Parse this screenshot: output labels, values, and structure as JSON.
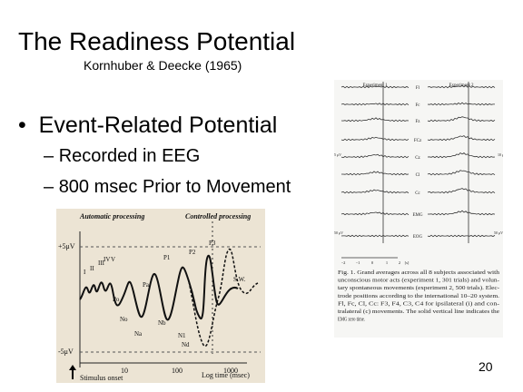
{
  "slide": {
    "title": "The Readiness Potential",
    "subtitle": "Kornhuber & Deecke (1965)",
    "bullets": [
      {
        "text": "Event-Related Potential",
        "sub": [
          "Recorded in EEG",
          "800 msec Prior to Movement"
        ]
      }
    ],
    "page_number": "20"
  },
  "left_figure": {
    "header_left": "Automatic processing",
    "header_right": "Controlled processing",
    "y_top": "+5μV",
    "y_bottom": "-5μV",
    "x_ticks": [
      "10",
      "100",
      "1000"
    ],
    "x_label": "Log time (msec)",
    "onset": "Stimulus onset",
    "components": [
      "I",
      "II",
      "III",
      "IV",
      "V",
      "Po",
      "No",
      "Na",
      "Pa",
      "Nb",
      "P1",
      "N1",
      "P2",
      "Nd",
      "P3",
      "S.W."
    ]
  },
  "right_figure": {
    "columns": [
      "Experiment 1",
      "Experiment 2"
    ],
    "channels": [
      "Fl",
      "Fc",
      "Fz",
      "FCz",
      "Cz",
      "Cl",
      "Cc",
      "EMG",
      "EOG"
    ],
    "scale_left": "5 μV",
    "scale_right": "10 μV",
    "emg_scale_left": "50 μV",
    "emg_scale_right": "50 μV",
    "time_axis": [
      "−2",
      "−1",
      "0",
      "1",
      "2",
      "[s]"
    ],
    "caption": [
      "Fig. 1. Grand averages across all 8 subjects associated with",
      "unconscious motor acts (experiment 1, 301 trials) and volun-",
      "tary spontaneous movements (experiment 2, 500 trials). Elec-",
      "trode positions according to the international 10–20 system.",
      "Fl, Fc, Cl, Cc: F3, F4, C3, C4 for ipsilateral (i) and con-",
      "tralateral (c) movements. The solid vertical line indicates the",
      "EMG zero time."
    ]
  }
}
